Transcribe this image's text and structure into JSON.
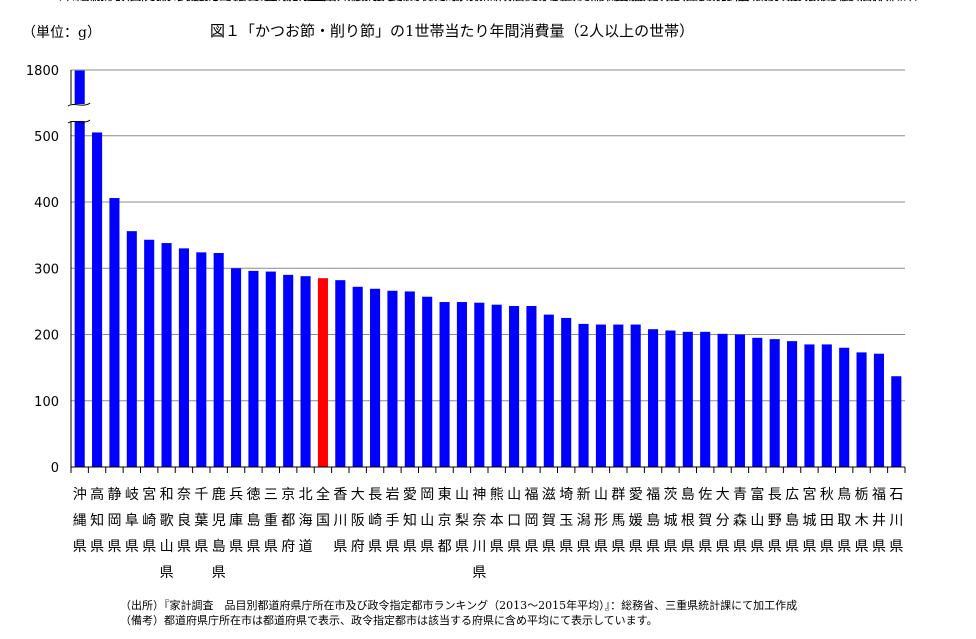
{
  "chart_data": {
    "type": "bar",
    "title": "図１「かつお節・削り節」の1世帯当たり年間消費量（2人以上の世帯）",
    "unit_label": "（単位：g）",
    "y_ticks": [
      0,
      100,
      200,
      300,
      400,
      500,
      1800
    ],
    "y_axis_break": {
      "from": 540,
      "to": 1800
    },
    "ylim": [
      0,
      1800
    ],
    "grid": true,
    "categories": [
      "沖縄県",
      "高知県",
      "静岡県",
      "岐阜県",
      "宮崎県",
      "和歌山県",
      "奈良県",
      "千葉県",
      "鹿児島県",
      "兵庫県",
      "徳島県",
      "三重県",
      "京都府",
      "北海道",
      "全国",
      "香川県",
      "大阪府",
      "長崎県",
      "岩手県",
      "愛知県",
      "岡山県",
      "東京都",
      "山梨県",
      "神奈川県",
      "熊本県",
      "山口県",
      "福岡県",
      "滋賀県",
      "埼玉県",
      "新潟県",
      "山形県",
      "群馬県",
      "愛媛県",
      "福島県",
      "茨城県",
      "島根県",
      "佐賀県",
      "大分県",
      "青森県",
      "富山県",
      "長野県",
      "広島県",
      "宮城県",
      "秋田県",
      "鳥取県",
      "栃木県",
      "福井県",
      "石川県"
    ],
    "values": [
      1780,
      505,
      406,
      356,
      343,
      338,
      330,
      324,
      323,
      300,
      296,
      295,
      290,
      288,
      285,
      282,
      272,
      269,
      266,
      265,
      257,
      249,
      249,
      248,
      245,
      243,
      243,
      230,
      225,
      216,
      215,
      215,
      215,
      208,
      206,
      204,
      204,
      201,
      200,
      195,
      193,
      190,
      185,
      185,
      180,
      173,
      171,
      137
    ],
    "highlight_category": "全国",
    "bar_color": "#0000ff",
    "highlight_color": "#ff0000"
  },
  "notes": {
    "source": "（出所）『家計調査　品目別都道府県庁所在市及び政令指定都市ランキング（2013～2015年平均）』：総務省、三重県統計課にて加工作成",
    "remark": "（備考）都道府県庁所在市は都道府県で表示、政令指定都市は該当する府県に含め平均にて表示しています。"
  }
}
